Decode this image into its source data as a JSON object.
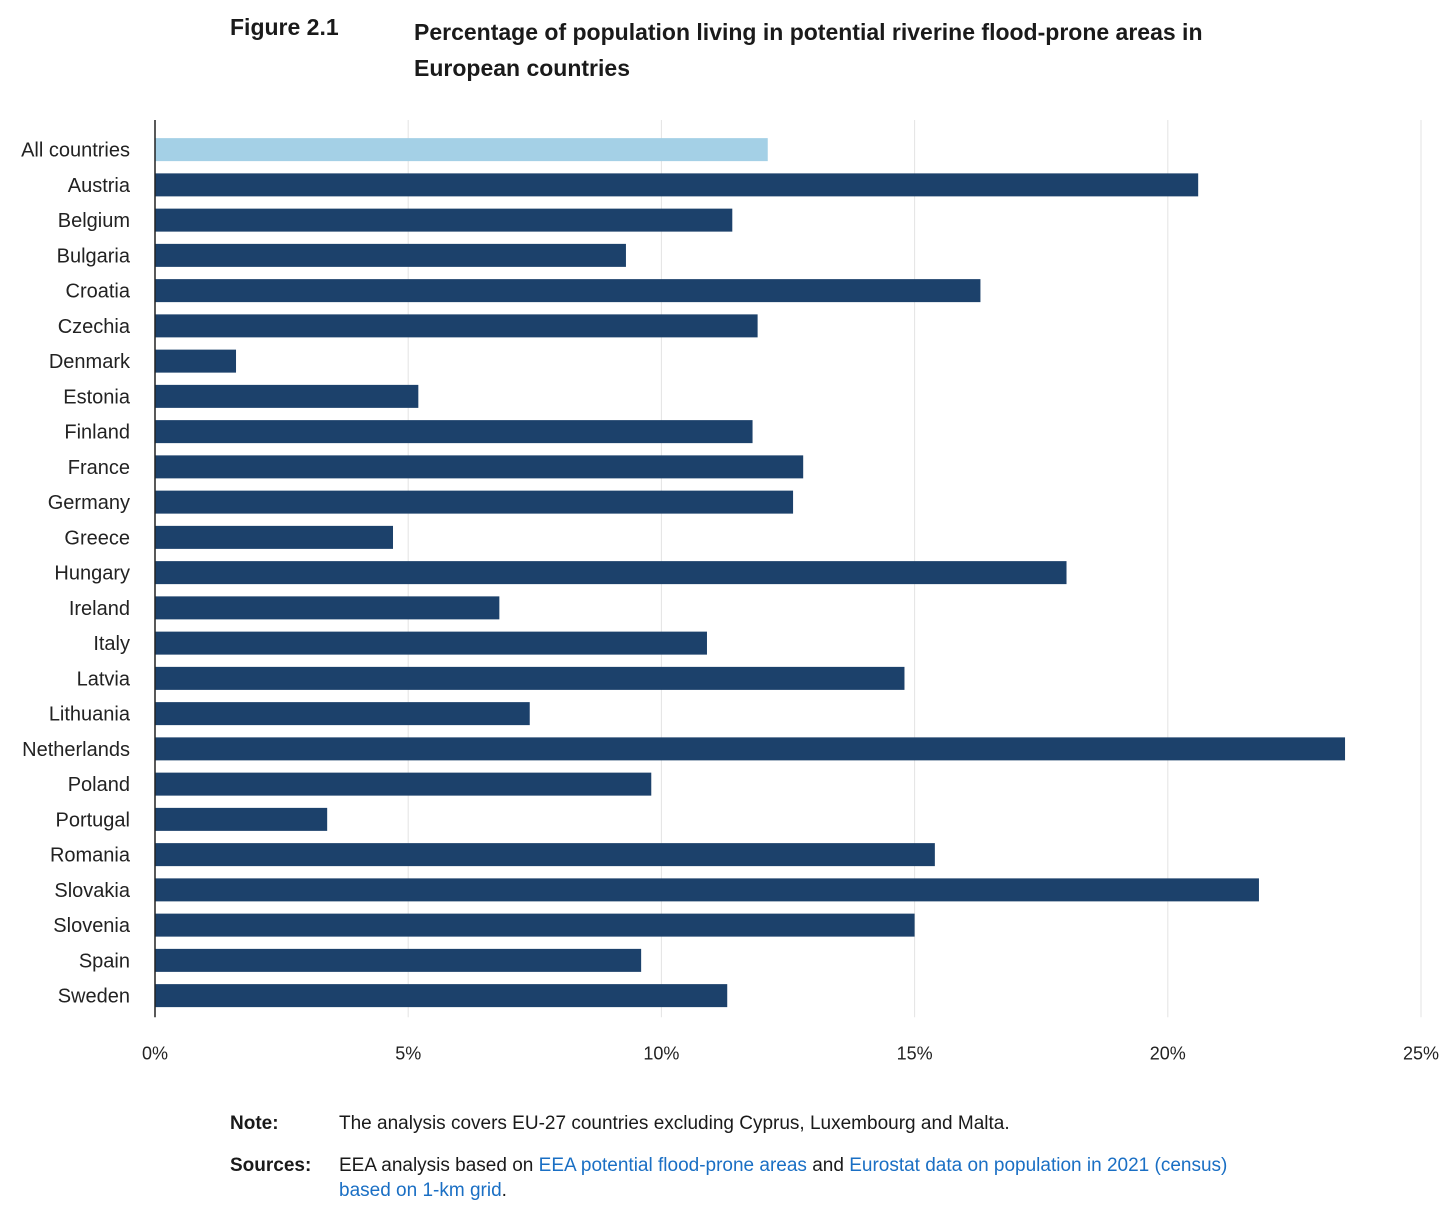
{
  "figure": {
    "label": "Figure 2.1",
    "title": "Percentage of population living in potential riverine flood-prone areas in European countries"
  },
  "chart_data": {
    "type": "bar",
    "orientation": "horizontal",
    "categories": [
      "All countries",
      "Austria",
      "Belgium",
      "Bulgaria",
      "Croatia",
      "Czechia",
      "Denmark",
      "Estonia",
      "Finland",
      "France",
      "Germany",
      "Greece",
      "Hungary",
      "Ireland",
      "Italy",
      "Latvia",
      "Lithuania",
      "Netherlands",
      "Poland",
      "Portugal",
      "Romania",
      "Slovakia",
      "Slovenia",
      "Spain",
      "Sweden"
    ],
    "values": [
      12.1,
      20.6,
      11.4,
      9.3,
      16.3,
      11.9,
      1.6,
      5.2,
      11.8,
      12.8,
      12.6,
      4.7,
      18.0,
      6.8,
      10.9,
      14.8,
      7.4,
      23.5,
      9.8,
      3.4,
      15.4,
      21.8,
      15.0,
      9.6,
      11.3
    ],
    "highlight_category": "All countries",
    "xlim": [
      0,
      25
    ],
    "x_ticks": [
      "0%",
      "5%",
      "10%",
      "15%",
      "20%",
      "25%"
    ],
    "grid": "vertical",
    "colors": {
      "bar": "#1c416b",
      "highlight": "#a4d0e6",
      "grid": "#e3e3e3",
      "axis": "#222222"
    }
  },
  "notes": {
    "note_label": "Note:",
    "note_text": "The analysis covers EU-27 countries excluding Cyprus, Luxembourg and Malta.",
    "sources_label": "Sources:",
    "sources_prefix": "EEA analysis based on ",
    "sources_link1": "EEA potential flood-prone areas",
    "sources_mid": " and ",
    "sources_link2": "Eurostat data on population in 2021 (census) based on 1-km grid",
    "sources_suffix": "."
  }
}
